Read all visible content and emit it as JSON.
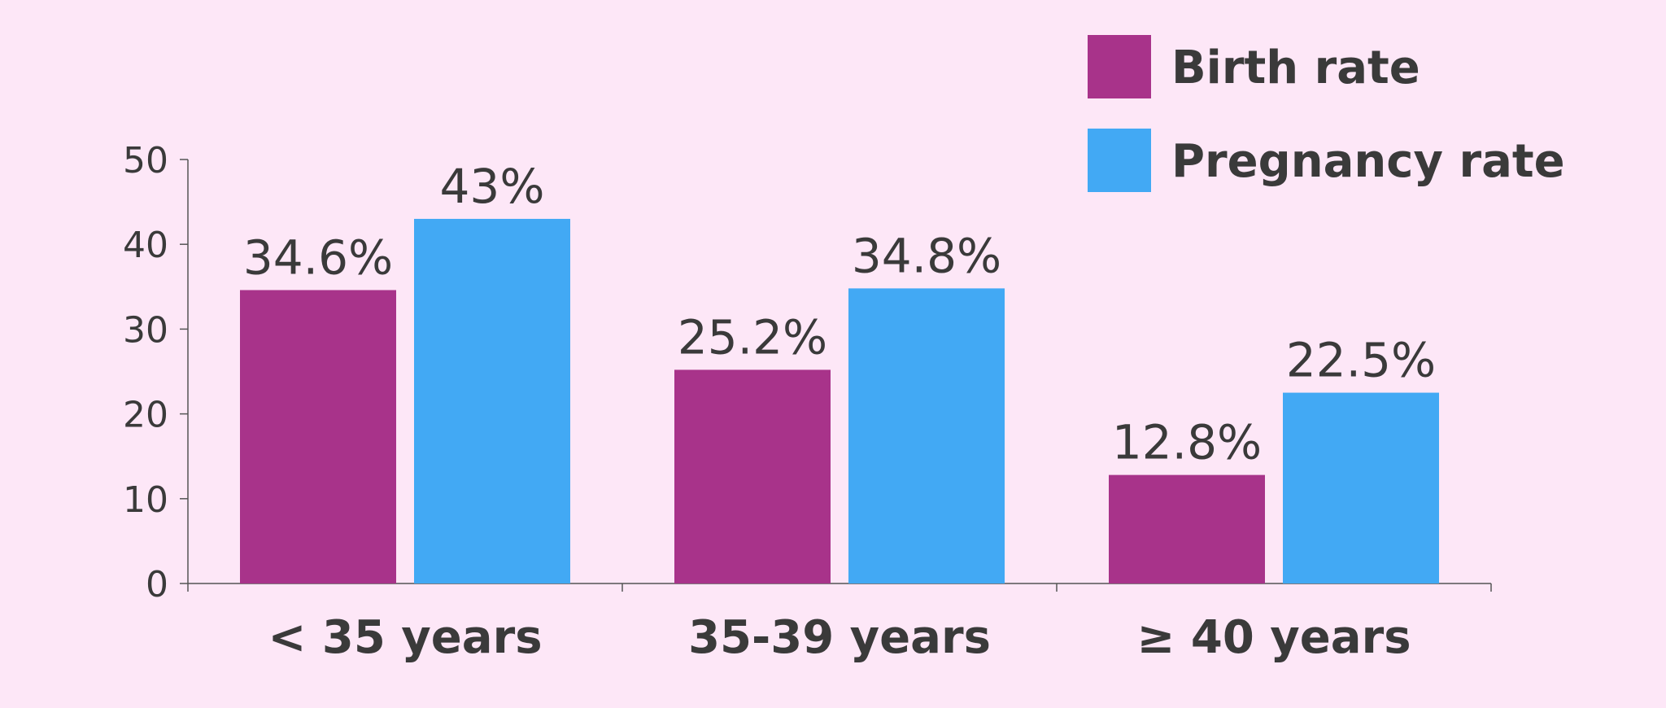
{
  "chart_data": {
    "type": "bar",
    "categories": [
      "< 35 years",
      "35-39 years",
      "≥ 40 years"
    ],
    "series": [
      {
        "name": "Birth rate",
        "color": "#a8338a",
        "values": [
          34.6,
          25.2,
          12.8
        ],
        "labels": [
          "34.6%",
          "25.2%",
          "12.8%"
        ]
      },
      {
        "name": "Pregnancy rate",
        "color": "#42a9f4",
        "values": [
          43,
          34.8,
          22.5
        ],
        "labels": [
          "43%",
          "34.8%",
          "22.5%"
        ]
      }
    ],
    "yticks": [
      0,
      10,
      20,
      30,
      40,
      50
    ],
    "ylim": [
      0,
      50
    ],
    "grid": false,
    "legend_position": "top-right",
    "title": "",
    "xlabel": "",
    "ylabel": ""
  }
}
